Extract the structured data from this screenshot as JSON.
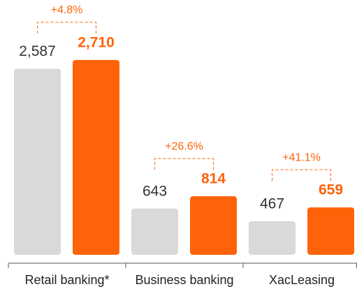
{
  "chart_data": {
    "type": "bar",
    "categories": [
      "Retail banking*",
      "Business banking",
      "XacLeasing"
    ],
    "series": [
      {
        "color": "#d9d9d9",
        "values": [
          2587,
          643,
          467
        ],
        "value_labels": [
          "2,587",
          "643",
          "467"
        ]
      },
      {
        "color": "#ff6309",
        "values": [
          2710,
          814,
          659
        ],
        "value_labels": [
          "2,710",
          "814",
          "659"
        ]
      }
    ],
    "annotations": [
      "+4.8%",
      "+26.6%",
      "+41.1%"
    ]
  }
}
